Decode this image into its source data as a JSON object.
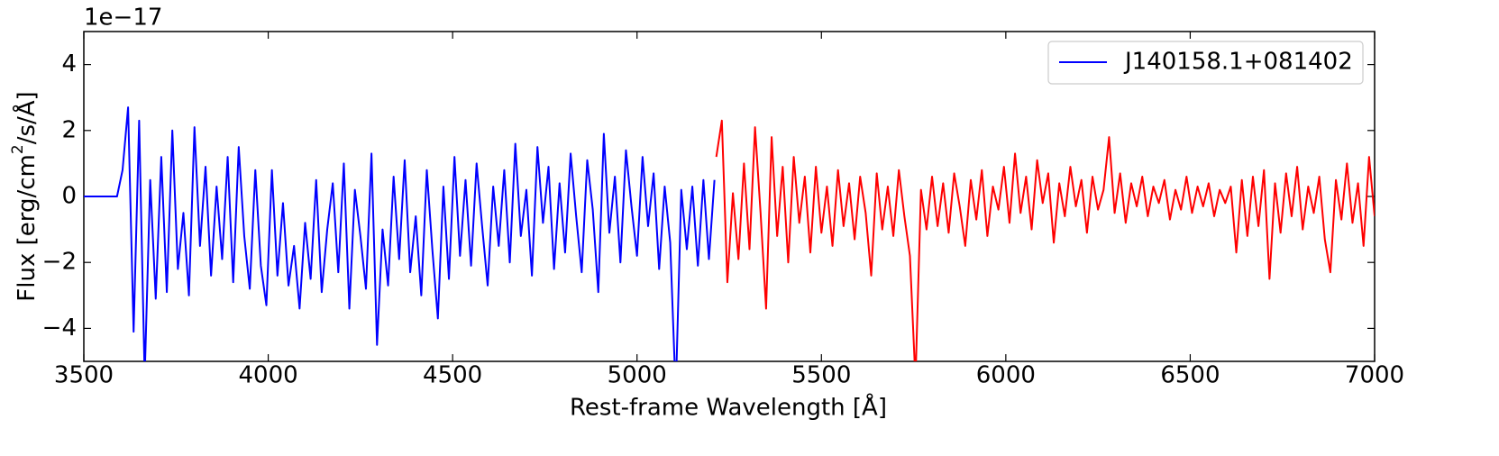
{
  "chart_data": {
    "type": "line",
    "xlabel": "Rest-frame Wavelength [Å]",
    "ylabel": [
      "Flux [erg/cm",
      "2",
      "/s/Å]"
    ],
    "y_offset_label": "1e−17",
    "xlim": [
      3500,
      7000
    ],
    "xticks": [
      3500,
      4000,
      4500,
      5000,
      5500,
      6000,
      6500,
      7000
    ],
    "ylim": [
      -5,
      5
    ],
    "yticks": [
      {
        "value": -4,
        "label": "−4"
      },
      {
        "value": -2,
        "label": "−2"
      },
      0,
      2,
      4
    ],
    "legend": "upper right",
    "series": [
      {
        "name": "J140158.1+081402",
        "color": "#0000ff",
        "x": [
          3500,
          3515,
          3530,
          3545,
          3560,
          3575,
          3590,
          3605,
          3620,
          3635,
          3650,
          3665,
          3680,
          3695,
          3710,
          3725,
          3740,
          3755,
          3770,
          3785,
          3800,
          3815,
          3830,
          3845,
          3860,
          3875,
          3890,
          3905,
          3920,
          3935,
          3950,
          3965,
          3980,
          3995,
          4010,
          4025,
          4040,
          4055,
          4070,
          4085,
          4100,
          4115,
          4130,
          4145,
          4160,
          4175,
          4190,
          4205,
          4220,
          4235,
          4250,
          4265,
          4280,
          4295,
          4310,
          4325,
          4340,
          4355,
          4370,
          4385,
          4400,
          4415,
          4430,
          4445,
          4460,
          4475,
          4490,
          4505,
          4520,
          4535,
          4550,
          4565,
          4580,
          4595,
          4610,
          4625,
          4640,
          4655,
          4670,
          4685,
          4700,
          4715,
          4730,
          4745,
          4760,
          4775,
          4790,
          4805,
          4820,
          4835,
          4850,
          4865,
          4880,
          4895,
          4910,
          4925,
          4940,
          4955,
          4970,
          4985,
          5000,
          5015,
          5030,
          5045,
          5060,
          5075,
          5090,
          5105,
          5120,
          5135,
          5150,
          5165,
          5180,
          5195,
          5210
        ],
        "values": [
          0,
          0,
          0,
          0,
          0,
          0,
          0,
          0.8,
          2.7,
          -4.1,
          2.3,
          -5.5,
          0.5,
          -3.1,
          1.2,
          -2.9,
          2.0,
          -2.2,
          -0.5,
          -3.0,
          2.1,
          -1.5,
          0.9,
          -2.4,
          0.3,
          -1.9,
          1.2,
          -2.6,
          1.5,
          -1.2,
          -2.8,
          0.8,
          -2.1,
          -3.3,
          0.8,
          -2.4,
          -0.2,
          -2.7,
          -1.5,
          -3.4,
          -0.8,
          -2.5,
          0.5,
          -2.9,
          -1.0,
          0.4,
          -2.3,
          1.0,
          -3.4,
          0.2,
          -1.2,
          -2.8,
          1.3,
          -4.5,
          -1.0,
          -2.7,
          0.6,
          -1.9,
          1.1,
          -2.3,
          -0.6,
          -3.0,
          0.8,
          -1.6,
          -3.7,
          0.3,
          -2.5,
          1.2,
          -1.8,
          0.5,
          -2.1,
          1.0,
          -0.9,
          -2.7,
          0.3,
          -1.5,
          0.8,
          -2.0,
          1.6,
          -1.2,
          0.2,
          -2.4,
          1.5,
          -0.8,
          0.9,
          -2.2,
          0.4,
          -1.7,
          1.3,
          -0.6,
          -2.3,
          1.1,
          -0.4,
          -2.9,
          1.9,
          -1.1,
          0.6,
          -2.0,
          1.4,
          -0.3,
          -1.8,
          1.2,
          -0.9,
          0.7,
          -2.2,
          0.3,
          -1.4,
          -6.0,
          0.2,
          -1.6,
          0.3,
          -2.1,
          0.5,
          -1.9,
          0.5
        ]
      },
      {
        "color": "#ff0000",
        "x": [
          5215,
          5230,
          5245,
          5260,
          5275,
          5290,
          5305,
          5320,
          5335,
          5350,
          5365,
          5380,
          5395,
          5410,
          5425,
          5440,
          5455,
          5470,
          5485,
          5500,
          5515,
          5530,
          5545,
          5560,
          5575,
          5590,
          5605,
          5620,
          5635,
          5650,
          5665,
          5680,
          5695,
          5710,
          5725,
          5740,
          5755,
          5770,
          5785,
          5800,
          5815,
          5830,
          5845,
          5860,
          5875,
          5890,
          5905,
          5920,
          5935,
          5950,
          5965,
          5980,
          5995,
          6010,
          6025,
          6040,
          6055,
          6070,
          6085,
          6100,
          6115,
          6130,
          6145,
          6160,
          6175,
          6190,
          6205,
          6220,
          6235,
          6250,
          6265,
          6280,
          6295,
          6310,
          6325,
          6340,
          6355,
          6370,
          6385,
          6400,
          6415,
          6430,
          6445,
          6460,
          6475,
          6490,
          6505,
          6520,
          6535,
          6550,
          6565,
          6580,
          6595,
          6610,
          6625,
          6640,
          6655,
          6670,
          6685,
          6700,
          6715,
          6730,
          6745,
          6760,
          6775,
          6790,
          6805,
          6820,
          6835,
          6850,
          6865,
          6880,
          6895,
          6910,
          6925,
          6940,
          6955,
          6970,
          6985,
          7000
        ],
        "values": [
          1.2,
          2.3,
          -2.6,
          0.1,
          -1.9,
          1.0,
          -1.6,
          2.1,
          -0.5,
          -3.4,
          1.8,
          -1.2,
          0.9,
          -2.0,
          1.2,
          -0.8,
          0.6,
          -1.7,
          0.9,
          -1.1,
          0.3,
          -1.5,
          0.8,
          -0.9,
          0.4,
          -1.3,
          0.6,
          -0.5,
          -2.4,
          0.7,
          -1.0,
          0.3,
          -1.2,
          0.8,
          -0.6,
          -1.8,
          -5.6,
          0.2,
          -1.0,
          0.6,
          -0.9,
          0.4,
          -1.1,
          0.7,
          -0.3,
          -1.5,
          0.5,
          -0.7,
          0.8,
          -1.2,
          0.3,
          -0.4,
          0.9,
          -0.8,
          1.3,
          -0.5,
          0.6,
          -1.0,
          1.1,
          -0.2,
          0.7,
          -1.4,
          0.4,
          -0.6,
          0.9,
          -0.3,
          0.5,
          -1.1,
          0.6,
          -0.4,
          0.2,
          1.8,
          -0.5,
          0.7,
          -0.8,
          0.4,
          -0.3,
          0.6,
          -0.6,
          0.3,
          -0.2,
          0.5,
          -0.7,
          0.2,
          -0.4,
          0.6,
          -0.5,
          0.3,
          -0.3,
          0.4,
          -0.6,
          0.2,
          -0.2,
          0.3,
          -1.7,
          0.5,
          -1.2,
          0.6,
          -0.9,
          0.8,
          -2.5,
          0.4,
          -1.1,
          0.7,
          -0.6,
          0.9,
          -1.0,
          0.3,
          -0.5,
          0.6,
          -1.3,
          -2.3,
          0.5,
          -0.7,
          1.0,
          -0.8,
          0.4,
          -1.5,
          1.2,
          -0.6
        ]
      }
    ]
  }
}
